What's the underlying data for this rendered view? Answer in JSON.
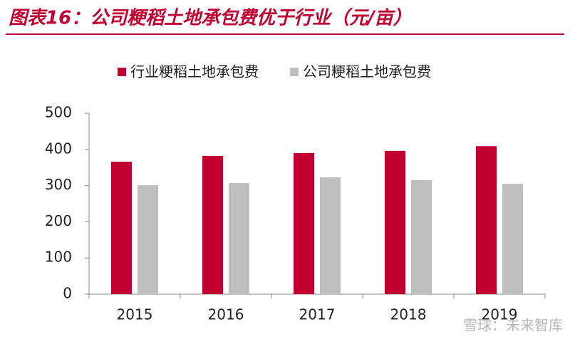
{
  "chart_data": {
    "type": "bar",
    "title": "图表16：公司粳稻土地承包费优于行业（元/亩）",
    "categories": [
      "2015",
      "2016",
      "2017",
      "2018",
      "2019"
    ],
    "series": [
      {
        "name": "行业粳稻土地承包费",
        "color": "#c00030",
        "values": [
          366,
          382,
          390,
          396,
          409
        ]
      },
      {
        "name": "公司粳稻土地承包费",
        "color": "#bfbfbf",
        "values": [
          301,
          307,
          323,
          315,
          305
        ]
      }
    ],
    "ylim": [
      0,
      500
    ],
    "yticks": [
      0,
      100,
      200,
      300,
      400,
      500
    ],
    "legend": "top",
    "watermark": "雪球：未来智库"
  }
}
